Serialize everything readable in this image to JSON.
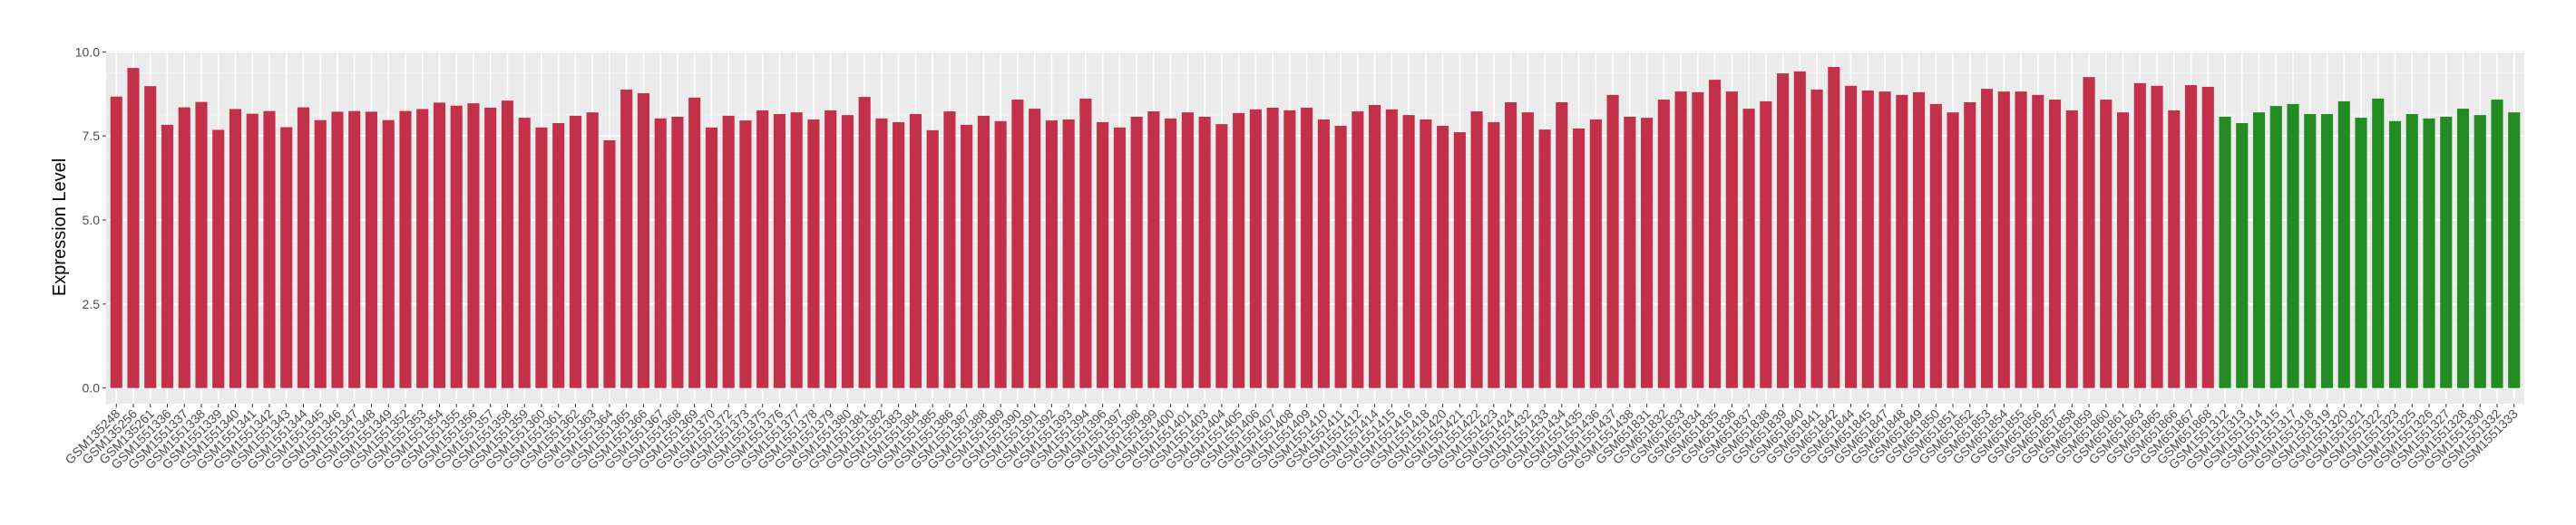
{
  "chart_data": {
    "type": "bar",
    "title": "",
    "xlabel": "",
    "ylabel": "Expression Level",
    "ylim": [
      0,
      10
    ],
    "yticks": [
      "0.0",
      "2.5",
      "5.0",
      "7.5",
      "10.0"
    ],
    "grid": true,
    "legend": "none",
    "colors": {
      "red": "#C3304A",
      "green": "#228B22",
      "panel": "#EBEBEB"
    },
    "categories": [
      "GSM135248",
      "GSM135256",
      "GSM135261",
      "GSM1551336",
      "GSM1551337",
      "GSM1551338",
      "GSM1551339",
      "GSM1551340",
      "GSM1551341",
      "GSM1551342",
      "GSM1551343",
      "GSM1551344",
      "GSM1551345",
      "GSM1551346",
      "GSM1551347",
      "GSM1551348",
      "GSM1551349",
      "GSM1551352",
      "GSM1551353",
      "GSM1551354",
      "GSM1551355",
      "GSM1551356",
      "GSM1551357",
      "GSM1551358",
      "GSM1551359",
      "GSM1551360",
      "GSM1551361",
      "GSM1551362",
      "GSM1551363",
      "GSM1551364",
      "GSM1551365",
      "GSM1551366",
      "GSM1551367",
      "GSM1551368",
      "GSM1551369",
      "GSM1551370",
      "GSM1551372",
      "GSM1551373",
      "GSM1551375",
      "GSM1551376",
      "GSM1551377",
      "GSM1551378",
      "GSM1551379",
      "GSM1551380",
      "GSM1551381",
      "GSM1551382",
      "GSM1551383",
      "GSM1551384",
      "GSM1551385",
      "GSM1551386",
      "GSM1551387",
      "GSM1551388",
      "GSM1551389",
      "GSM1551390",
      "GSM1551391",
      "GSM1551392",
      "GSM1551393",
      "GSM1551394",
      "GSM1551396",
      "GSM1551397",
      "GSM1551398",
      "GSM1551399",
      "GSM1551400",
      "GSM1551401",
      "GSM1551403",
      "GSM1551404",
      "GSM1551405",
      "GSM1551406",
      "GSM1551407",
      "GSM1551408",
      "GSM1551409",
      "GSM1551410",
      "GSM1551411",
      "GSM1551412",
      "GSM1551414",
      "GSM1551415",
      "GSM1551416",
      "GSM1551418",
      "GSM1551420",
      "GSM1551421",
      "GSM1551422",
      "GSM1551423",
      "GSM1551424",
      "GSM1551432",
      "GSM1551433",
      "GSM1551434",
      "GSM1551435",
      "GSM1551436",
      "GSM1551437",
      "GSM1551438",
      "GSM651831",
      "GSM651832",
      "GSM651833",
      "GSM651834",
      "GSM651835",
      "GSM651836",
      "GSM651837",
      "GSM651838",
      "GSM651839",
      "GSM651840",
      "GSM651841",
      "GSM651842",
      "GSM651844",
      "GSM651845",
      "GSM651847",
      "GSM651848",
      "GSM651849",
      "GSM651850",
      "GSM651851",
      "GSM651852",
      "GSM651853",
      "GSM651854",
      "GSM651855",
      "GSM651856",
      "GSM651857",
      "GSM651858",
      "GSM651859",
      "GSM651860",
      "GSM651861",
      "GSM651863",
      "GSM651865",
      "GSM651866",
      "GSM651867",
      "GSM651868",
      "GSM1551312",
      "GSM1551313",
      "GSM1551314",
      "GSM1551315",
      "GSM1551317",
      "GSM1551318",
      "GSM1551319",
      "GSM1551320",
      "GSM1551321",
      "GSM1551322",
      "GSM1551323",
      "GSM1551325",
      "GSM1551326",
      "GSM1551327",
      "GSM1551328",
      "GSM1551330",
      "GSM1551332",
      "GSM1551333"
    ],
    "values": [
      8.67,
      9.52,
      8.98,
      7.83,
      8.35,
      8.51,
      7.68,
      8.3,
      8.16,
      8.24,
      7.76,
      8.35,
      7.97,
      8.22,
      8.24,
      8.22,
      7.97,
      8.24,
      8.3,
      8.49,
      8.4,
      8.47,
      8.34,
      8.55,
      8.04,
      7.75,
      7.88,
      8.1,
      8.2,
      7.37,
      8.88,
      8.77,
      8.02,
      8.07,
      8.64,
      7.75,
      8.1,
      7.96,
      8.26,
      8.15,
      8.2,
      7.99,
      8.26,
      8.12,
      8.66,
      8.02,
      7.91,
      8.15,
      7.67,
      8.23,
      7.83,
      8.1,
      7.94,
      8.58,
      8.31,
      7.96,
      7.99,
      8.61,
      7.91,
      7.75,
      8.07,
      8.23,
      8.02,
      8.2,
      8.07,
      7.85,
      8.18,
      8.29,
      8.34,
      8.26,
      8.34,
      7.99,
      7.8,
      8.23,
      8.42,
      8.29,
      8.12,
      7.99,
      7.8,
      7.61,
      8.23,
      7.91,
      8.5,
      8.2,
      7.69,
      8.5,
      7.72,
      7.99,
      8.72,
      8.07,
      8.04,
      8.58,
      8.82,
      8.8,
      9.17,
      8.82,
      8.31,
      8.53,
      9.36,
      9.42,
      8.88,
      9.55,
      8.99,
      8.85,
      8.82,
      8.72,
      8.8,
      8.45,
      8.2,
      8.5,
      8.9,
      8.82,
      8.82,
      8.72,
      8.58,
      8.26,
      9.25,
      8.58,
      8.2,
      9.07,
      8.99,
      8.26,
      9.01,
      8.96,
      8.07,
      7.88,
      8.2,
      8.39,
      8.45,
      8.15,
      8.15,
      8.53,
      8.04,
      8.61,
      7.94,
      8.15,
      8.02,
      8.07,
      8.31,
      8.12,
      8.58,
      8.2
    ],
    "groups": {
      "red_count": 124,
      "green_count": 18
    }
  }
}
